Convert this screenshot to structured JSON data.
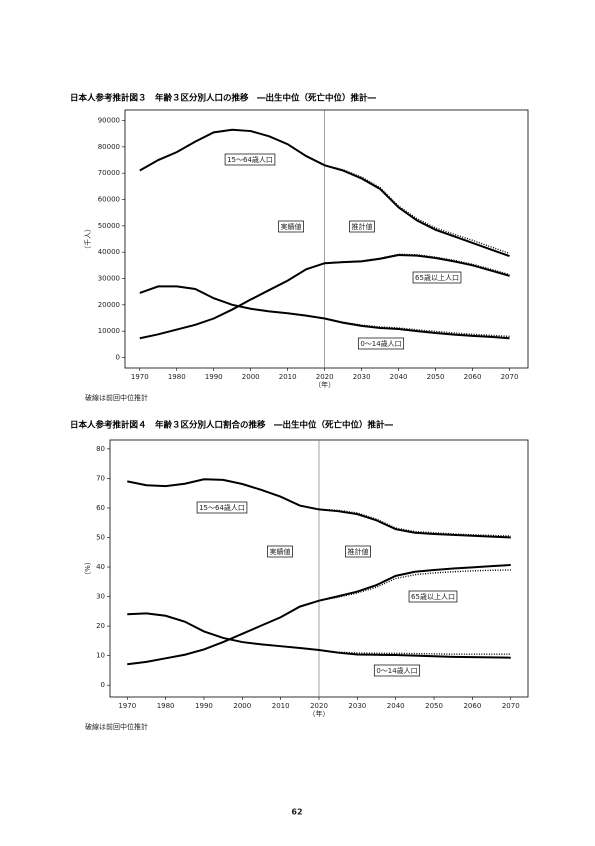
{
  "chart_data": [
    {
      "type": "line",
      "title": "日本人参考推計図３　年齢３区分別人口の推移　―出生中位（死亡中位）推計―",
      "y_label": "（千人）",
      "x_label": "（年）",
      "note": "破線は前回中位推計",
      "annotations": [
        "実績値",
        "推計値"
      ],
      "divider_x": 2020,
      "x": [
        1970,
        1975,
        1980,
        1985,
        1990,
        1995,
        2000,
        2005,
        2010,
        2015,
        2020,
        2025,
        2030,
        2035,
        2040,
        2045,
        2050,
        2055,
        2060,
        2065,
        2070
      ],
      "xlim": [
        1966,
        2075
      ],
      "xticks": [
        1970,
        1980,
        1990,
        2000,
        2010,
        2020,
        2030,
        2040,
        2050,
        2060,
        2070
      ],
      "ylim": [
        -4000,
        94000
      ],
      "yticks": [
        0,
        10000,
        20000,
        30000,
        40000,
        50000,
        60000,
        70000,
        80000,
        90000
      ],
      "series": [
        {
          "name": "15～64歳人口",
          "color": "#000000",
          "style": "solid",
          "values": [
            71000,
            75000,
            78000,
            82000,
            85500,
            86500,
            86000,
            84000,
            81000,
            76500,
            73000,
            71000,
            68000,
            64000,
            57000,
            52000,
            48500,
            46000,
            43500,
            41000,
            38500
          ]
        },
        {
          "name": "65歳以上人口",
          "color": "#000000",
          "style": "solid",
          "values": [
            7300,
            8800,
            10600,
            12400,
            14800,
            18200,
            22000,
            25600,
            29200,
            33500,
            35800,
            36200,
            36500,
            37500,
            38900,
            38700,
            37800,
            36500,
            35000,
            33000,
            31000
          ]
        },
        {
          "name": "0～14歳人口",
          "color": "#000000",
          "style": "solid",
          "values": [
            24500,
            27000,
            27000,
            26000,
            22500,
            20000,
            18500,
            17500,
            16800,
            15900,
            14800,
            13200,
            12000,
            11200,
            10800,
            10000,
            9300,
            8700,
            8200,
            7800,
            7300
          ]
        },
        {
          "color": "#000000",
          "style": "dotted",
          "values": [
            null,
            null,
            null,
            null,
            null,
            null,
            null,
            null,
            null,
            null,
            73000,
            71300,
            68500,
            64500,
            57500,
            52700,
            49200,
            46800,
            44500,
            42000,
            39500
          ]
        },
        {
          "color": "#000000",
          "style": "dotted",
          "values": [
            null,
            null,
            null,
            null,
            null,
            null,
            null,
            null,
            null,
            null,
            35800,
            36300,
            36700,
            37700,
            39200,
            39000,
            38100,
            36900,
            35400,
            33500,
            31500
          ]
        },
        {
          "color": "#000000",
          "style": "dotted",
          "values": [
            null,
            null,
            null,
            null,
            null,
            null,
            null,
            null,
            null,
            null,
            14800,
            13400,
            12300,
            11600,
            11200,
            10500,
            9900,
            9300,
            8800,
            8400,
            8000
          ]
        }
      ]
    },
    {
      "type": "line",
      "title": "日本人参考推計図４　年齢３区分別人口割合の推移　―出生中位（死亡中位）推計―",
      "y_label": "（%）",
      "x_label": "（年）",
      "note": "破線は前回中位推計",
      "annotations": [
        "実績値",
        "推計値"
      ],
      "divider_x": 2020,
      "x": [
        1970,
        1975,
        1980,
        1985,
        1990,
        1995,
        2000,
        2005,
        2010,
        2015,
        2020,
        2025,
        2030,
        2035,
        2040,
        2045,
        2050,
        2055,
        2060,
        2065,
        2070
      ],
      "xlim": [
        1965.5,
        2074.5
      ],
      "xticks": [
        1970,
        1980,
        1990,
        2000,
        2010,
        2020,
        2030,
        2040,
        2050,
        2060,
        2070
      ],
      "ylim": [
        -4,
        83
      ],
      "yticks": [
        0,
        10,
        20,
        30,
        40,
        50,
        60,
        70,
        80
      ],
      "series": [
        {
          "name": "15～64歳人口",
          "color": "#000000",
          "style": "solid",
          "values": [
            69,
            67.7,
            67.4,
            68.2,
            69.7,
            69.5,
            68.1,
            66.1,
            63.8,
            60.8,
            59.5,
            58.9,
            57.9,
            55.8,
            52.8,
            51.6,
            51.2,
            50.9,
            50.6,
            50.3,
            50
          ]
        },
        {
          "name": "65歳以上人口",
          "color": "#000000",
          "style": "solid",
          "values": [
            7.1,
            7.9,
            9.1,
            10.3,
            12.1,
            14.6,
            17.4,
            20.2,
            23,
            26.6,
            28.6,
            30.1,
            31.7,
            33.9,
            37,
            38.4,
            39,
            39.5,
            39.9,
            40.3,
            40.7
          ]
        },
        {
          "name": "0～14歳人口",
          "color": "#000000",
          "style": "solid",
          "values": [
            24,
            24.3,
            23.5,
            21.5,
            18.2,
            16,
            14.6,
            13.8,
            13.2,
            12.6,
            11.9,
            11,
            10.4,
            10.3,
            10.2,
            10,
            9.8,
            9.6,
            9.5,
            9.4,
            9.3
          ]
        },
        {
          "color": "#000000",
          "style": "dotted",
          "values": [
            null,
            null,
            null,
            null,
            null,
            null,
            null,
            null,
            null,
            null,
            59.5,
            59.2,
            58.3,
            56.2,
            53.2,
            52,
            51.6,
            51.2,
            50.9,
            50.7,
            50.5
          ]
        },
        {
          "color": "#000000",
          "style": "dotted",
          "values": [
            null,
            null,
            null,
            null,
            null,
            null,
            null,
            null,
            null,
            null,
            28.6,
            29.8,
            31.2,
            33.2,
            36.1,
            37.4,
            38,
            38.4,
            38.7,
            38.9,
            39
          ]
        },
        {
          "color": "#000000",
          "style": "dotted",
          "values": [
            null,
            null,
            null,
            null,
            null,
            null,
            null,
            null,
            null,
            null,
            11.9,
            11.2,
            10.9,
            10.8,
            10.8,
            10.7,
            10.6,
            10.5,
            10.5,
            10.5,
            10.5
          ]
        }
      ]
    }
  ],
  "page_number": "62"
}
